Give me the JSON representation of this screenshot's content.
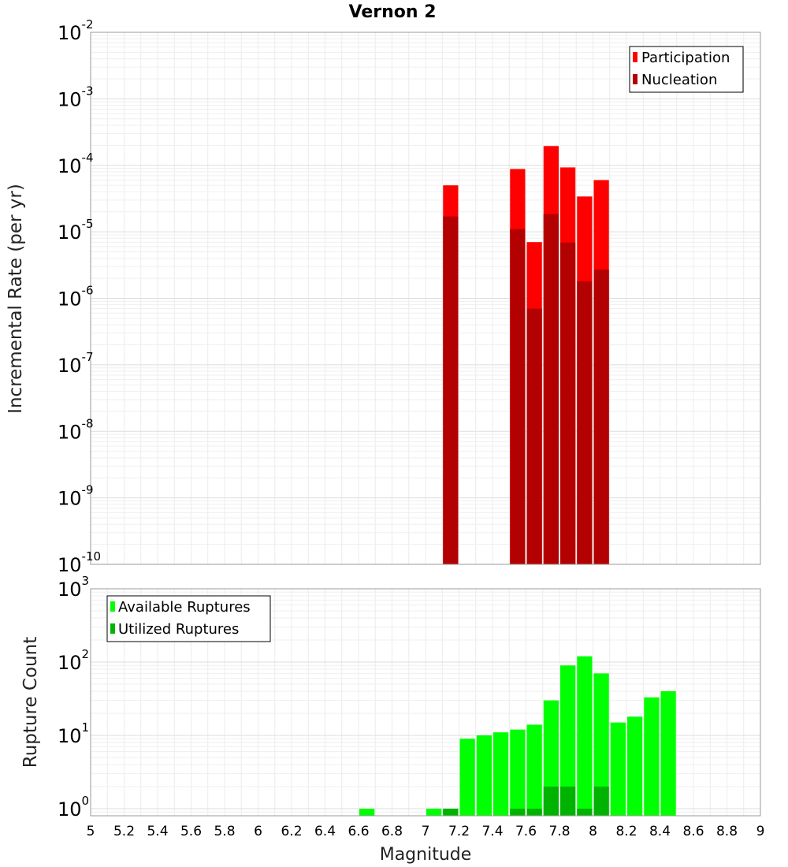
{
  "chart_data": [
    {
      "type": "bar",
      "title": "Vernon 2",
      "ylabel": "Incremental Rate (per yr)",
      "xlabel": "Magnitude",
      "xlim": [
        5,
        9
      ],
      "ylim": [
        1e-10,
        0.01
      ],
      "yscale": "log",
      "y_ticks": [
        {
          "base": "10",
          "exp": "-2",
          "value": 0.01
        },
        {
          "base": "10",
          "exp": "-3",
          "value": 0.001
        },
        {
          "base": "10",
          "exp": "-4",
          "value": 0.0001
        },
        {
          "base": "10",
          "exp": "-5",
          "value": 1e-05
        },
        {
          "base": "10",
          "exp": "-6",
          "value": 1e-06
        },
        {
          "base": "10",
          "exp": "-7",
          "value": 1e-07
        },
        {
          "base": "10",
          "exp": "-8",
          "value": 1e-08
        },
        {
          "base": "10",
          "exp": "-9",
          "value": 1e-09
        },
        {
          "base": "10",
          "exp": "-10",
          "value": 1e-10
        }
      ],
      "legend_position": "top-right",
      "legend": [
        {
          "label": "Participation",
          "color": "#ff0000"
        },
        {
          "label": "Nucleation",
          "color": "#b30000"
        }
      ],
      "bin_width": 0.1,
      "series": [
        {
          "name": "Participation",
          "color": "#ff0000",
          "x": [
            7.15,
            7.55,
            7.65,
            7.75,
            7.85,
            7.95,
            8.05
          ],
          "values": [
            5e-05,
            8.8e-05,
            7e-06,
            0.000195,
            9.3e-05,
            3.4e-05,
            6e-05
          ]
        },
        {
          "name": "Nucleation",
          "color": "#b30000",
          "x": [
            7.15,
            7.55,
            7.65,
            7.75,
            7.85,
            7.95,
            8.05
          ],
          "values": [
            1.7e-05,
            1.1e-05,
            7e-07,
            1.85e-05,
            6.9e-06,
            1.8e-06,
            2.7e-06
          ]
        }
      ]
    },
    {
      "type": "bar",
      "ylabel": "Rupture Count",
      "xlabel": "Magnitude",
      "xlim": [
        5,
        9
      ],
      "ylim": [
        0.8,
        1000
      ],
      "yscale": "log",
      "y_ticks": [
        {
          "base": "10",
          "exp": "3",
          "value": 1000
        },
        {
          "base": "10",
          "exp": "2",
          "value": 100
        },
        {
          "base": "10",
          "exp": "1",
          "value": 10
        },
        {
          "base": "10",
          "exp": "0",
          "value": 1
        }
      ],
      "x_ticks": [
        "5",
        "5.2",
        "5.4",
        "5.6",
        "5.8",
        "6",
        "6.2",
        "6.4",
        "6.6",
        "6.8",
        "7",
        "7.2",
        "7.4",
        "7.6",
        "7.8",
        "8",
        "8.2",
        "8.4",
        "8.6",
        "8.8",
        "9"
      ],
      "legend_position": "top-left",
      "legend": [
        {
          "label": "Available Ruptures",
          "color": "#00ff00"
        },
        {
          "label": "Utilized Ruptures",
          "color": "#00b300"
        }
      ],
      "bin_width": 0.1,
      "series": [
        {
          "name": "Available Ruptures",
          "color": "#00ff00",
          "x": [
            6.65,
            7.05,
            7.15,
            7.25,
            7.35,
            7.45,
            7.55,
            7.65,
            7.75,
            7.85,
            7.95,
            8.05,
            8.15,
            8.25,
            8.35,
            8.45
          ],
          "values": [
            1,
            1,
            1,
            9,
            10,
            11,
            12,
            14,
            30,
            90,
            120,
            70,
            15,
            18,
            33,
            40
          ]
        },
        {
          "name": "Utilized Ruptures",
          "color": "#00b300",
          "x": [
            7.15,
            7.55,
            7.65,
            7.75,
            7.85,
            7.95,
            8.05
          ],
          "values": [
            1,
            1,
            1,
            2,
            2,
            1,
            2
          ]
        }
      ]
    }
  ]
}
